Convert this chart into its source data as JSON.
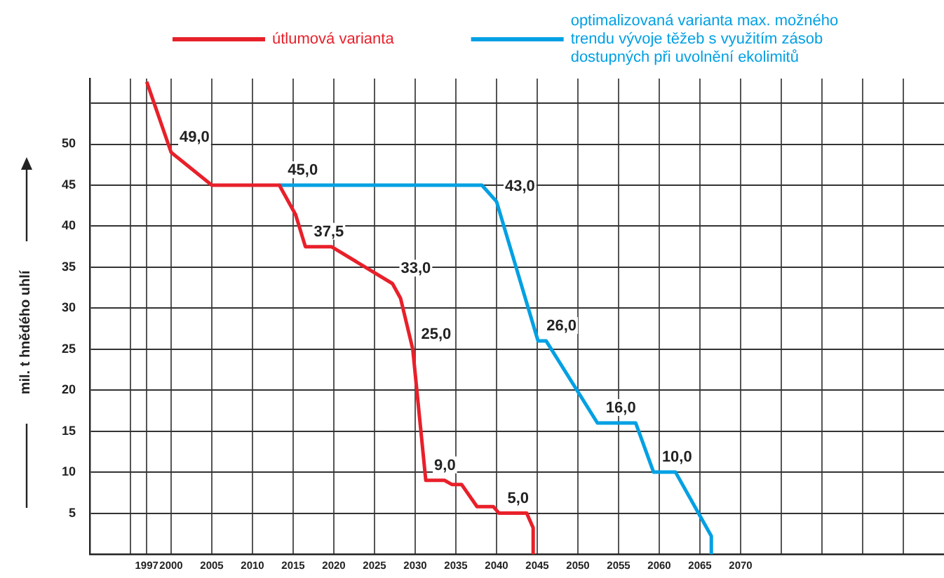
{
  "chart_data": {
    "type": "line",
    "ylabel": "mil. t hnědého uhlí",
    "legend": "top",
    "grid": true,
    "xlim": [
      1990,
      2095
    ],
    "ylim": [
      0,
      58
    ],
    "xticks": [
      {
        "value": 1990,
        "label": null
      },
      {
        "value": 1995,
        "label": null
      },
      1997,
      2000,
      2005,
      2010,
      2015,
      2020,
      2025,
      2030,
      2035,
      2040,
      2045,
      2050,
      2055,
      2060,
      2065,
      2070,
      {
        "value": 2075,
        "label": null
      },
      {
        "value": 2080,
        "label": null
      },
      {
        "value": 2085,
        "label": null
      },
      {
        "value": 2090,
        "label": null
      }
    ],
    "yticks": [
      {
        "value": 0,
        "label": null
      },
      5,
      10,
      15,
      20,
      25,
      30,
      35,
      40,
      45,
      50,
      {
        "value": 55,
        "label": null
      }
    ],
    "series": [
      {
        "name": "útlumová varianta",
        "color": "#e8202a",
        "x": [
          1997,
          2000,
          2005,
          2013.3,
          2015.3,
          2016.5,
          2019.7,
          2027.2,
          2028.2,
          2029.7,
          2031.3,
          2033.6,
          2034.5,
          2035.7,
          2037.6,
          2039.6,
          2040.3,
          2043.7,
          2044.5,
          2044.5
        ],
        "values": [
          57.6,
          49.0,
          45.0,
          45.0,
          41.4,
          37.5,
          37.5,
          33.0,
          31.2,
          25.0,
          9.0,
          9.0,
          8.5,
          8.5,
          5.8,
          5.8,
          5.0,
          5.0,
          3.2,
          0
        ],
        "value_labels": [
          null,
          "49,0",
          null,
          null,
          null,
          "37,5",
          null,
          "33,0",
          null,
          "25,0",
          "9,0",
          null,
          null,
          null,
          null,
          null,
          "5,0",
          null,
          null,
          null
        ]
      },
      {
        "name": "optimalizovaná varianta max. možného trendu vývoje těžeb s využitím zásob dostupných při uvolnění ekolimitů",
        "color": "#00a0e3",
        "x": [
          2013.3,
          2038.2,
          2040,
          2045.1,
          2046.1,
          2052.4,
          2057.1,
          2059.3,
          2062,
          2066.4,
          2066.4
        ],
        "values": [
          45.0,
          45.0,
          43.0,
          26.0,
          26.0,
          16.0,
          16.0,
          10.0,
          10.0,
          2.2,
          0
        ],
        "value_labels": [
          "45,0",
          null,
          "43,0",
          "26,0",
          null,
          "16,0",
          null,
          "10,0",
          null,
          null,
          null
        ]
      }
    ]
  }
}
